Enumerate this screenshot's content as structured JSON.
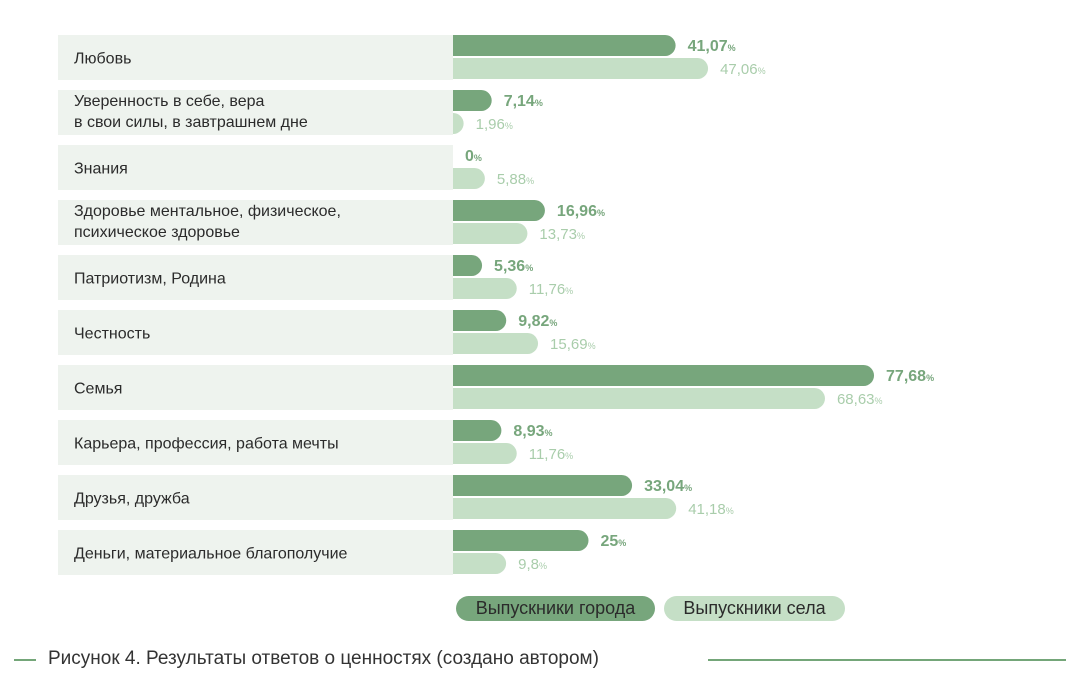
{
  "chart_data": {
    "type": "bar",
    "orientation": "horizontal",
    "categories": [
      [
        "Любовь"
      ],
      [
        "Уверенность в себе, вера",
        "в свои силы, в завтрашнем дне"
      ],
      [
        "Знания"
      ],
      [
        "Здоровье ментальное, физическое,",
        "психическое здоровье"
      ],
      [
        "Патриотизм, Родина"
      ],
      [
        "Честность"
      ],
      [
        "Семья"
      ],
      [
        "Карьера, профессия, работа мечты"
      ],
      [
        "Друзья, дружба"
      ],
      [
        "Деньги, материальное благополучие"
      ]
    ],
    "series": [
      {
        "name": "Выпускники города",
        "color": "#77a67c",
        "values": [
          41.07,
          7.14,
          0,
          16.96,
          5.36,
          9.82,
          77.68,
          8.93,
          33.04,
          25
        ],
        "labels": [
          "41,07",
          "7,14",
          "0",
          "16,96",
          "5,36",
          "9,82",
          "77,68",
          "8,93",
          "33,04",
          "25"
        ]
      },
      {
        "name": "Выпускники села",
        "color": "#c5dfc6",
        "text_color": "#a9cdab",
        "values": [
          47.06,
          1.96,
          5.88,
          13.73,
          11.76,
          15.69,
          68.63,
          11.76,
          41.18,
          9.8
        ],
        "labels": [
          "47,06",
          "1,96",
          "5,88",
          "13,73",
          "11,76",
          "15,69",
          "68,63",
          "11,76",
          "41,18",
          "9,8"
        ]
      }
    ],
    "unit_suffix": "%",
    "xlim": [
      0,
      100
    ],
    "grid": false,
    "legend_position": "bottom-center",
    "row_band_color": "#eef3ee"
  },
  "caption": "Рисунок 4. Результаты ответов о ценностях (создано автором)"
}
